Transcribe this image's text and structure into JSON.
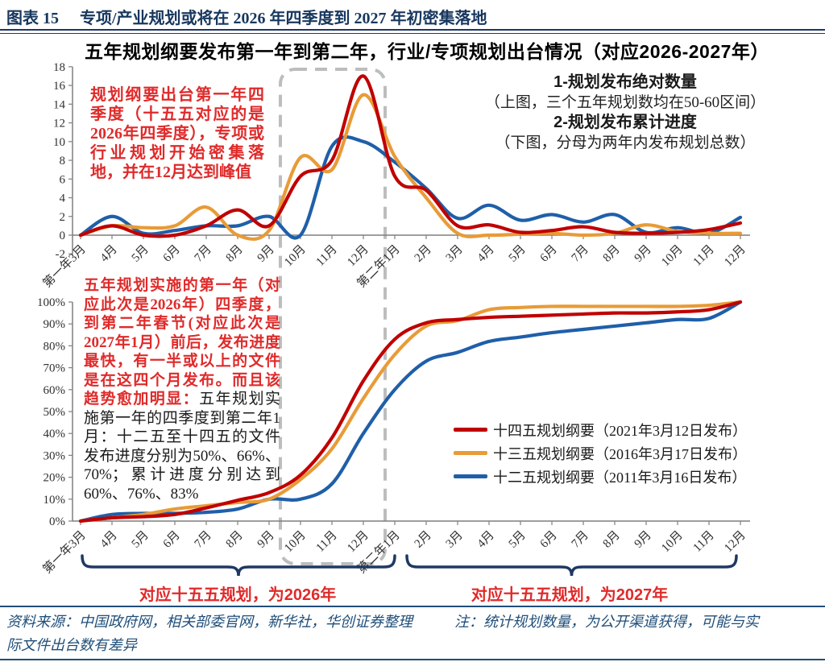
{
  "header": {
    "figure_label": "图表 15",
    "figure_title": "专项/产业规划或将在 2026 年四季度到 2027 年初密集落地"
  },
  "chart_title": "五年规划纲要发布第一年到第二年，行业/专项规划出台情况（对应2026-2027年）",
  "annotations": {
    "top_left": "规划纲要出台第一年四季度（十五五对应的是2026年四季度），专项或行业规划开始密集落地，并在12月达到峰值",
    "right_line1": "1-规划发布绝对数量",
    "right_line2": "（上图，三个五年规划数均在50-60区间）",
    "right_line3": "2-规划发布累计进度",
    "right_line4": "（下图，分母为两年内发布规划总数）",
    "bottom_left_red": "五年规划实施的第一年（对应此次是2026年）四季度，到第二年春节(对应此次是2027年1月）前后，发布进度最快，有一半或以上的文件是在这四个月发布。而且该趋势愈加明显：",
    "bottom_left_black": "五年规划实施第一年的四季度到第二年1月：十二五至十四五的文件发布进度分别为50%、66%、70%；累计进度分别达到60%、76%、83%"
  },
  "braces": {
    "left_label": "对应十五五规划，为2026年",
    "right_label": "对应十五五规划，为2027年"
  },
  "footer": {
    "source": "资料来源：中国政府网，相关部委官网，新华社，华创证券整理",
    "note": "注：统计规划数量，为公开渠道获得，可能与实际文件出台数有差异"
  },
  "colors": {
    "plan_145": "#C00000",
    "plan_135": "#E89B37",
    "plan_125": "#1F5FA9",
    "accent_navy": "#1F3864",
    "annotation_red": "#E02A2A",
    "highlight_box_gray": "#BDBDBD"
  },
  "chart_data": [
    {
      "type": "line",
      "panel": "top",
      "ylabel": "规划发布绝对数量",
      "categories": [
        "第一年3月",
        "4月",
        "5月",
        "6月",
        "7月",
        "8月",
        "9月",
        "10月",
        "11月",
        "12月",
        "第二年1月",
        "2月",
        "3月",
        "4月",
        "5月",
        "6月",
        "7月",
        "8月",
        "9月",
        "10月",
        "11月",
        "12月"
      ],
      "ylim": [
        -2,
        18
      ],
      "ytick_step": 2,
      "grid": false,
      "series": [
        {
          "name": "十四五规划纲要（2021年3月12日发布）",
          "color": "#C00000",
          "values": [
            0,
            1,
            0,
            0,
            1,
            2.7,
            1,
            6.3,
            8,
            17,
            6.3,
            4.8,
            1,
            1.1,
            0.3,
            0.5,
            0.9,
            0.3,
            0.2,
            0.3,
            0.6,
            1.3
          ]
        },
        {
          "name": "十三五规划纲要（2016年3月17日发布）",
          "color": "#E89B37",
          "values": [
            0,
            1,
            0.8,
            1,
            3,
            0,
            0.5,
            8.3,
            7,
            15,
            8.4,
            4,
            0.2,
            0,
            0.1,
            0.2,
            0,
            0.2,
            1.1,
            0.4,
            0.2,
            0.2
          ]
        },
        {
          "name": "十二五规划纲要（2011年3月16日发布）",
          "color": "#1F5FA9",
          "values": [
            0,
            2,
            0.2,
            0.5,
            1,
            1,
            2,
            0,
            9.5,
            10,
            7.8,
            5,
            1.8,
            3.2,
            1.6,
            2.2,
            1.4,
            2.2,
            0.3,
            0.8,
            0.2,
            1.9
          ]
        }
      ],
      "highlight_window": [
        "10月",
        "11月",
        "12月",
        "第二年1月"
      ]
    },
    {
      "type": "line",
      "panel": "bottom",
      "ylabel": "规划发布累计进度",
      "categories": [
        "第一年3月",
        "4月",
        "5月",
        "6月",
        "7月",
        "8月",
        "9月",
        "10月",
        "11月",
        "12月",
        "第二年1月",
        "2月",
        "3月",
        "4月",
        "5月",
        "6月",
        "7月",
        "8月",
        "9月",
        "10月",
        "11月",
        "12月"
      ],
      "ylim": [
        0,
        100
      ],
      "ytick_step": 10,
      "yformat": "%",
      "grid": false,
      "legend_position": "center-right",
      "series": [
        {
          "name": "十四五规划纲要（2021年3月12日发布）",
          "color": "#C00000",
          "values": [
            0,
            1.5,
            2,
            3,
            6,
            9.5,
            13,
            21,
            38,
            64,
            83,
            90.5,
            92,
            93,
            93.5,
            94,
            94.5,
            95,
            95,
            95.5,
            96.5,
            100
          ]
        },
        {
          "name": "十三五规划纲要（2016年3月17日发布）",
          "color": "#E89B37",
          "values": [
            0,
            1.5,
            3,
            5.5,
            7,
            8.5,
            10,
            19,
            33,
            56,
            76,
            89,
            91.5,
            96.5,
            97.5,
            98,
            98,
            98,
            98,
            98,
            98.5,
            100
          ]
        },
        {
          "name": "十二五规划纲要（2011年3月16日发布）",
          "color": "#1F5FA9",
          "values": [
            0,
            3,
            3.5,
            3.5,
            4,
            5.5,
            10,
            10,
            17,
            40,
            60,
            73,
            77,
            82,
            84,
            86,
            87.5,
            89,
            90.5,
            92,
            92.5,
            100
          ]
        }
      ]
    }
  ]
}
